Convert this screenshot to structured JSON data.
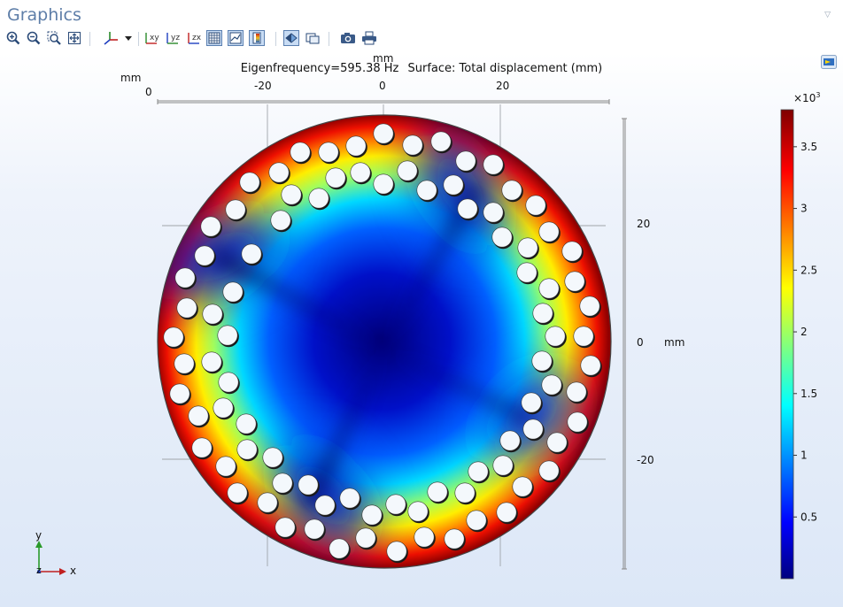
{
  "window": {
    "title": "Graphics"
  },
  "toolbar": {
    "buttons": [
      {
        "name": "zoom-in-icon"
      },
      {
        "name": "zoom-out-icon"
      },
      {
        "name": "zoom-box-icon"
      },
      {
        "name": "zoom-extents-icon"
      },
      {
        "name": "axis-orientation-icon"
      },
      {
        "name": "dropdown-arrow-icon"
      },
      {
        "name": "view-xy-icon",
        "label": "xy"
      },
      {
        "name": "view-yz-icon",
        "label": "yz"
      },
      {
        "name": "view-zx-icon",
        "label": "zx"
      },
      {
        "name": "grid-toggle-icon"
      },
      {
        "name": "axis-toggle-icon"
      },
      {
        "name": "color-legend-toggle-icon"
      },
      {
        "name": "transparency-icon"
      },
      {
        "name": "view-options-icon"
      },
      {
        "name": "camera-icon"
      },
      {
        "name": "print-icon"
      }
    ]
  },
  "plot": {
    "eigenfrequency": "Eigenfrequency=595.38 Hz",
    "surface": "Surface: Total displacement (mm)",
    "x_unit": "mm",
    "y_unit": "mm",
    "top_axis_corner": "0",
    "x_ticks": [
      "-20",
      "0",
      "20"
    ],
    "y_ticks": [
      "20",
      "0",
      "-20"
    ],
    "triad": {
      "y": "y",
      "x": "x",
      "z": "z"
    }
  },
  "colorbar": {
    "exponent_base": "×10",
    "exponent_power": "3",
    "ticks": [
      "3.5",
      "3",
      "2.5",
      "2",
      "1.5",
      "1",
      "0.5"
    ],
    "colormap": [
      "#00007f",
      "#0000ff",
      "#00ffff",
      "#ffff00",
      "#ff0000",
      "#7f0000"
    ]
  },
  "colors": {
    "title": "#5e7ea8",
    "hole_fill": "#f4f8fc"
  }
}
